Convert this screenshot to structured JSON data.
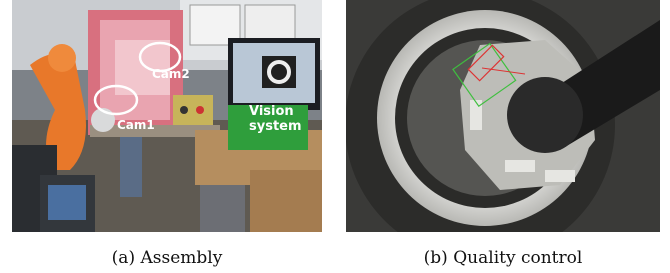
{
  "panels": [
    {
      "label": "(a)",
      "caption": "Assembly",
      "annotations": {
        "cam2": "Cam2",
        "cam1": "Cam1",
        "vision": [
          "Vision",
          "system"
        ]
      }
    },
    {
      "label": "(b)",
      "caption": "Quality control"
    }
  ]
}
